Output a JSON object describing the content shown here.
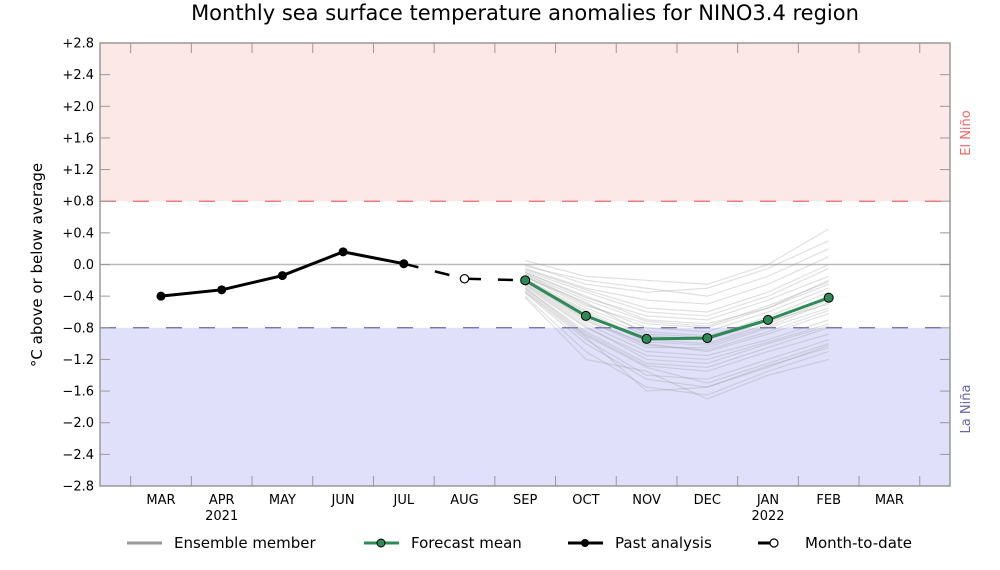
{
  "chart_data": {
    "type": "line",
    "title": "Monthly sea surface temperature anomalies for NINO3.4 region",
    "xlabel": "",
    "ylabel": "°C above or below average",
    "ylim": [
      -2.8,
      2.8
    ],
    "yticks": [
      2.8,
      2.4,
      2.0,
      1.6,
      1.2,
      0.8,
      0.4,
      0.0,
      -0.4,
      -0.8,
      -1.2,
      -1.6,
      -2.0,
      -2.4,
      -2.8
    ],
    "ytick_labels": [
      "+2.8",
      "+2.4",
      "+2.0",
      "+1.6",
      "+1.2",
      "+0.8",
      "+0.4",
      "0.0",
      "−0.4",
      "−0.8",
      "−1.2",
      "−1.6",
      "−2.0",
      "−2.4",
      "−2.8"
    ],
    "categories": [
      "MAR",
      "APR",
      "MAY",
      "JUN",
      "JUL",
      "AUG",
      "SEP",
      "OCT",
      "NOV",
      "DEC",
      "JAN",
      "FEB",
      "MAR"
    ],
    "year_labels": [
      {
        "index": 1,
        "label": "2021"
      },
      {
        "index": 10,
        "label": "2022"
      }
    ],
    "thresholds": {
      "el_nino": {
        "value": 0.8,
        "label": "El Niño",
        "color": "#ee6666",
        "fill": "#fde8e8"
      },
      "la_nina": {
        "value": -0.8,
        "label": "La Niña",
        "color": "#6666aa",
        "fill": "#e0e0fa"
      }
    },
    "zero_line": 0.0,
    "grid": false,
    "legend_position": "bottom",
    "series": [
      {
        "name": "Past analysis",
        "color": "#000000",
        "style": "solid-filled-marker",
        "x_index": [
          0,
          1,
          2,
          3,
          4
        ],
        "values": [
          -0.4,
          -0.32,
          -0.14,
          0.16,
          0.01
        ]
      },
      {
        "name": "Month-to-date",
        "color": "#000000",
        "style": "dashed-open-marker",
        "x_index": [
          4,
          5,
          6
        ],
        "values": [
          0.01,
          -0.18,
          -0.2
        ]
      },
      {
        "name": "Forecast mean",
        "color": "#2e8b57",
        "style": "solid-green-marker",
        "x_index": [
          6,
          7,
          8,
          9,
          10,
          11
        ],
        "values": [
          -0.2,
          -0.65,
          -0.94,
          -0.93,
          -0.7,
          -0.42
        ]
      }
    ],
    "ensemble": {
      "name": "Ensemble member",
      "color": "#999999",
      "x_index": [
        6,
        7,
        8,
        9,
        10,
        11
      ],
      "members": [
        [
          -0.1,
          -0.4,
          -0.7,
          -0.75,
          -0.55,
          -0.2
        ],
        [
          -0.15,
          -0.55,
          -0.85,
          -0.9,
          -0.7,
          -0.4
        ],
        [
          -0.25,
          -0.75,
          -1.1,
          -1.15,
          -0.95,
          -0.7
        ],
        [
          -0.05,
          -0.3,
          -0.45,
          -0.5,
          -0.25,
          0.1
        ],
        [
          -0.3,
          -0.85,
          -1.25,
          -1.3,
          -1.05,
          -0.8
        ],
        [
          -0.2,
          -0.6,
          -0.95,
          -1.0,
          -0.75,
          -0.45
        ],
        [
          0.0,
          -0.25,
          -0.35,
          -0.3,
          -0.05,
          0.3
        ],
        [
          -0.35,
          -0.95,
          -1.4,
          -1.45,
          -1.2,
          -0.95
        ],
        [
          -0.12,
          -0.5,
          -0.8,
          -0.85,
          -0.6,
          -0.3
        ],
        [
          -0.22,
          -0.7,
          -1.05,
          -1.05,
          -0.8,
          -0.55
        ],
        [
          -0.4,
          -1.1,
          -1.55,
          -1.65,
          -1.35,
          -1.1
        ],
        [
          -0.08,
          -0.35,
          -0.6,
          -0.65,
          -0.4,
          -0.05
        ],
        [
          -0.18,
          -0.58,
          -0.9,
          -0.95,
          -0.72,
          -0.5
        ],
        [
          -0.28,
          -0.8,
          -1.15,
          -1.2,
          -0.98,
          -0.75
        ],
        [
          0.05,
          -0.15,
          -0.2,
          -0.25,
          0.0,
          0.45
        ],
        [
          -0.32,
          -0.9,
          -1.3,
          -1.5,
          -1.25,
          -1.0
        ],
        [
          -0.14,
          -0.52,
          -0.75,
          -0.8,
          -0.55,
          -0.25
        ],
        [
          -0.24,
          -0.72,
          -1.0,
          -1.1,
          -0.88,
          -0.62
        ],
        [
          -0.42,
          -1.2,
          -1.35,
          -1.7,
          -1.4,
          -1.2
        ],
        [
          -0.06,
          -0.32,
          -0.55,
          -0.6,
          -0.35,
          0.0
        ],
        [
          -0.16,
          -0.48,
          -0.88,
          -0.92,
          -0.66,
          -0.35
        ],
        [
          -0.26,
          -0.78,
          -1.2,
          -1.25,
          -1.0,
          -0.78
        ],
        [
          -0.36,
          -1.0,
          -1.45,
          -1.55,
          -1.28,
          -1.05
        ],
        [
          -0.1,
          -0.42,
          -0.65,
          -0.7,
          -0.45,
          -0.15
        ],
        [
          -0.2,
          -0.62,
          -0.98,
          -1.02,
          -0.78,
          -0.48
        ],
        [
          -0.3,
          -0.88,
          -1.28,
          -1.35,
          -1.1,
          -0.88
        ],
        [
          -0.02,
          -0.2,
          -0.3,
          -0.4,
          -0.15,
          0.2
        ],
        [
          -0.34,
          -0.92,
          -1.6,
          -1.55,
          -1.3,
          -1.02
        ],
        [
          -0.12,
          -0.45,
          -0.72,
          -0.78,
          -0.52,
          -0.22
        ],
        [
          -0.22,
          -0.68,
          -1.02,
          -1.08,
          -0.85,
          -0.58
        ]
      ]
    }
  },
  "legend": {
    "items": [
      {
        "label": "Ensemble member"
      },
      {
        "label": "Forecast mean"
      },
      {
        "label": "Past analysis"
      },
      {
        "label": "Month-to-date"
      }
    ]
  }
}
